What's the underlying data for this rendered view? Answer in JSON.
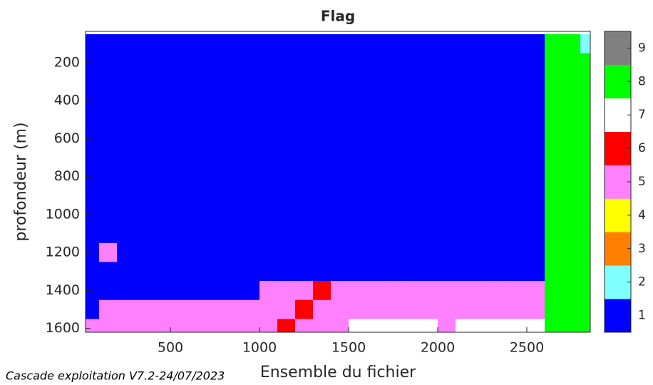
{
  "chart_data": {
    "type": "heatmap",
    "title": "Flag",
    "xlabel": "Ensemble du fichier",
    "ylabel": "profondeur (m)",
    "footer": "Cascade exploitation V7.2-24/07/2023",
    "xlim": [
      24,
      2856
    ],
    "ylim": [
      35,
      1620
    ],
    "y_reversed": true,
    "xticks": [
      500,
      1000,
      1500,
      2000,
      2500
    ],
    "yticks": [
      200,
      400,
      600,
      800,
      1000,
      1200,
      1400,
      1600
    ],
    "x": [
      50,
      150,
      250,
      350,
      450,
      550,
      650,
      750,
      850,
      950,
      1050,
      1150,
      1250,
      1350,
      1450,
      1550,
      1650,
      1750,
      1850,
      1950,
      2050,
      2150,
      2250,
      2350,
      2450,
      2550,
      2650,
      2750,
      2850
    ],
    "y": [
      100,
      200,
      300,
      400,
      500,
      600,
      700,
      800,
      900,
      1000,
      1100,
      1200,
      1300,
      1400,
      1500,
      1600
    ],
    "z": [
      [
        1,
        1,
        1,
        1,
        1,
        1,
        1,
        1,
        1,
        1,
        1,
        1,
        1,
        1,
        1,
        1,
        1,
        1,
        1,
        1,
        1,
        1,
        1,
        1,
        1,
        1,
        8,
        8,
        2
      ],
      [
        1,
        1,
        1,
        1,
        1,
        1,
        1,
        1,
        1,
        1,
        1,
        1,
        1,
        1,
        1,
        1,
        1,
        1,
        1,
        1,
        1,
        1,
        1,
        1,
        1,
        1,
        8,
        8,
        8
      ],
      [
        1,
        1,
        1,
        1,
        1,
        1,
        1,
        1,
        1,
        1,
        1,
        1,
        1,
        1,
        1,
        1,
        1,
        1,
        1,
        1,
        1,
        1,
        1,
        1,
        1,
        1,
        8,
        8,
        8
      ],
      [
        1,
        1,
        1,
        1,
        1,
        1,
        1,
        1,
        1,
        1,
        1,
        1,
        1,
        1,
        1,
        1,
        1,
        1,
        1,
        1,
        1,
        1,
        1,
        1,
        1,
        1,
        8,
        8,
        8
      ],
      [
        1,
        1,
        1,
        1,
        1,
        1,
        1,
        1,
        1,
        1,
        1,
        1,
        1,
        1,
        1,
        1,
        1,
        1,
        1,
        1,
        1,
        1,
        1,
        1,
        1,
        1,
        8,
        8,
        8
      ],
      [
        1,
        1,
        1,
        1,
        1,
        1,
        1,
        1,
        1,
        1,
        1,
        1,
        1,
        1,
        1,
        1,
        1,
        1,
        1,
        1,
        1,
        1,
        1,
        1,
        1,
        1,
        8,
        8,
        8
      ],
      [
        1,
        1,
        1,
        1,
        1,
        1,
        1,
        1,
        1,
        1,
        1,
        1,
        1,
        1,
        1,
        1,
        1,
        1,
        1,
        1,
        1,
        1,
        1,
        1,
        1,
        1,
        8,
        8,
        8
      ],
      [
        1,
        1,
        1,
        1,
        1,
        1,
        1,
        1,
        1,
        1,
        1,
        1,
        1,
        1,
        1,
        1,
        1,
        1,
        1,
        1,
        1,
        1,
        1,
        1,
        1,
        1,
        8,
        8,
        8
      ],
      [
        1,
        1,
        1,
        1,
        1,
        1,
        1,
        1,
        1,
        1,
        1,
        1,
        1,
        1,
        1,
        1,
        1,
        1,
        1,
        1,
        1,
        1,
        1,
        1,
        1,
        1,
        8,
        8,
        8
      ],
      [
        1,
        1,
        1,
        1,
        1,
        1,
        1,
        1,
        1,
        1,
        1,
        1,
        1,
        1,
        1,
        1,
        1,
        1,
        1,
        1,
        1,
        1,
        1,
        1,
        1,
        1,
        8,
        8,
        8
      ],
      [
        1,
        1,
        1,
        1,
        1,
        1,
        1,
        1,
        1,
        1,
        1,
        1,
        1,
        1,
        1,
        1,
        1,
        1,
        1,
        1,
        1,
        1,
        1,
        1,
        1,
        1,
        8,
        8,
        8
      ],
      [
        1,
        5,
        1,
        1,
        1,
        1,
        1,
        1,
        1,
        1,
        1,
        1,
        1,
        1,
        1,
        1,
        1,
        1,
        1,
        1,
        1,
        1,
        1,
        1,
        1,
        1,
        8,
        8,
        8
      ],
      [
        1,
        1,
        1,
        1,
        1,
        1,
        1,
        1,
        1,
        1,
        1,
        1,
        1,
        1,
        1,
        1,
        1,
        1,
        1,
        1,
        1,
        1,
        1,
        1,
        1,
        1,
        8,
        8,
        8
      ],
      [
        1,
        1,
        1,
        1,
        1,
        1,
        1,
        1,
        1,
        1,
        5,
        5,
        5,
        6,
        5,
        5,
        5,
        5,
        5,
        5,
        5,
        5,
        5,
        5,
        5,
        5,
        8,
        8,
        8
      ],
      [
        1,
        5,
        5,
        5,
        5,
        5,
        5,
        5,
        5,
        5,
        5,
        5,
        6,
        5,
        5,
        5,
        5,
        5,
        5,
        5,
        5,
        5,
        5,
        5,
        5,
        5,
        8,
        8,
        8
      ],
      [
        5,
        5,
        5,
        5,
        5,
        5,
        5,
        5,
        5,
        5,
        5,
        6,
        5,
        5,
        5,
        7,
        7,
        7,
        7,
        7,
        5,
        7,
        7,
        7,
        7,
        7,
        8,
        8,
        8
      ]
    ],
    "colorbar": {
      "clim": [
        0.5,
        9.5
      ],
      "ticks": [
        1,
        2,
        3,
        4,
        5,
        6,
        7,
        8,
        9
      ],
      "colors": [
        "#0000ff",
        "#80ffff",
        "#ff8000",
        "#ffff00",
        "#ff80ff",
        "#ff0000",
        "#ffffff",
        "#00ff00",
        "#808080"
      ]
    }
  }
}
